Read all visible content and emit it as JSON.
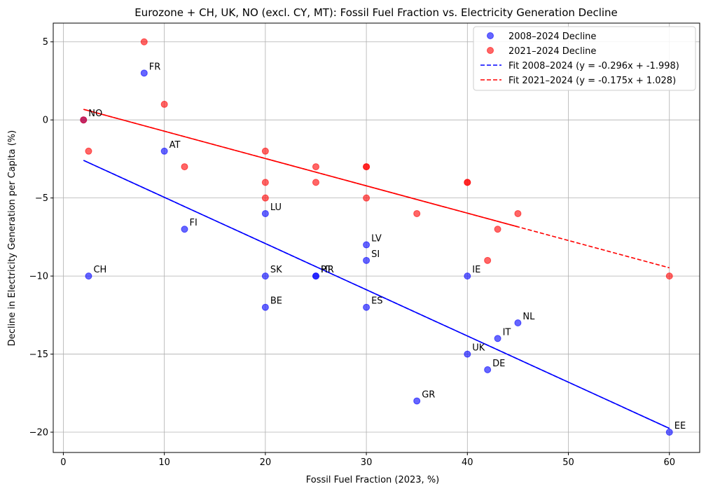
{
  "chart_data": {
    "type": "scatter",
    "title": "Eurozone + CH, UK, NO (excl. CY, MT): Fossil Fuel Fraction vs. Electricity Generation Decline",
    "xlabel": "Fossil Fuel Fraction (2023, %)",
    "ylabel": "Decline in Electricity Generation per Capita (%)",
    "xlim": [
      -1,
      63
    ],
    "ylim": [
      -21.3,
      6.2
    ],
    "xticks": [
      0,
      10,
      20,
      30,
      40,
      50,
      60
    ],
    "yticks": [
      -20,
      -15,
      -10,
      -5,
      0,
      5
    ],
    "grid": true,
    "legend_position": "top-right",
    "colors": {
      "series1": "#0000ff",
      "series2": "#ff0000"
    },
    "series": [
      {
        "name": "2008–2024 Decline",
        "kind": "scatter",
        "color": "#0000ff",
        "points": [
          {
            "label": "NO",
            "x": 2,
            "y": 0
          },
          {
            "label": "FR",
            "x": 8,
            "y": 3
          },
          {
            "label": "AT",
            "x": 10,
            "y": -2
          },
          {
            "label": "CH",
            "x": 2.5,
            "y": -10
          },
          {
            "label": "FI",
            "x": 12,
            "y": -7
          },
          {
            "label": "LU",
            "x": 20,
            "y": -6
          },
          {
            "label": "SK",
            "x": 20,
            "y": -10
          },
          {
            "label": "BE",
            "x": 20,
            "y": -12
          },
          {
            "label": "PT",
            "x": 25,
            "y": -10
          },
          {
            "label": "HR",
            "x": 25,
            "y": -10
          },
          {
            "label": "LV",
            "x": 30,
            "y": -8
          },
          {
            "label": "SI",
            "x": 30,
            "y": -9
          },
          {
            "label": "ES",
            "x": 30,
            "y": -12
          },
          {
            "label": "GR",
            "x": 35,
            "y": -18
          },
          {
            "label": "IE",
            "x": 40,
            "y": -10
          },
          {
            "label": "UK",
            "x": 40,
            "y": -15
          },
          {
            "label": "DE",
            "x": 42,
            "y": -16
          },
          {
            "label": "IT",
            "x": 43,
            "y": -14
          },
          {
            "label": "NL",
            "x": 45,
            "y": -13
          },
          {
            "label": "EE",
            "x": 60,
            "y": -20
          }
        ]
      },
      {
        "name": "2021–2024 Decline",
        "kind": "scatter",
        "color": "#ff0000",
        "points": [
          {
            "x": 2,
            "y": 0
          },
          {
            "x": 8,
            "y": 5
          },
          {
            "x": 10,
            "y": 1
          },
          {
            "x": 2.5,
            "y": -2
          },
          {
            "x": 12,
            "y": -3
          },
          {
            "x": 20,
            "y": -4
          },
          {
            "x": 20,
            "y": -2
          },
          {
            "x": 20,
            "y": -5
          },
          {
            "x": 25,
            "y": -3
          },
          {
            "x": 25,
            "y": -4
          },
          {
            "x": 30,
            "y": -3
          },
          {
            "x": 30,
            "y": -3
          },
          {
            "x": 30,
            "y": -5
          },
          {
            "x": 35,
            "y": -6
          },
          {
            "x": 40,
            "y": -4
          },
          {
            "x": 40,
            "y": -4
          },
          {
            "x": 42,
            "y": -9
          },
          {
            "x": 43,
            "y": -7
          },
          {
            "x": 45,
            "y": -6
          },
          {
            "x": 60,
            "y": -10
          }
        ]
      },
      {
        "name": "Fit 2008–2024 (y = -0.296x + -1.998)",
        "kind": "fit",
        "color": "#0000ff",
        "slope": -0.296,
        "intercept": -1.998,
        "x_range": [
          2,
          60
        ]
      },
      {
        "name": "Fit 2021–2024 (y = -0.175x + 1.028)",
        "kind": "fit",
        "color": "#ff0000",
        "slope": -0.175,
        "intercept": 1.028,
        "x_range": [
          2,
          60
        ]
      }
    ]
  }
}
